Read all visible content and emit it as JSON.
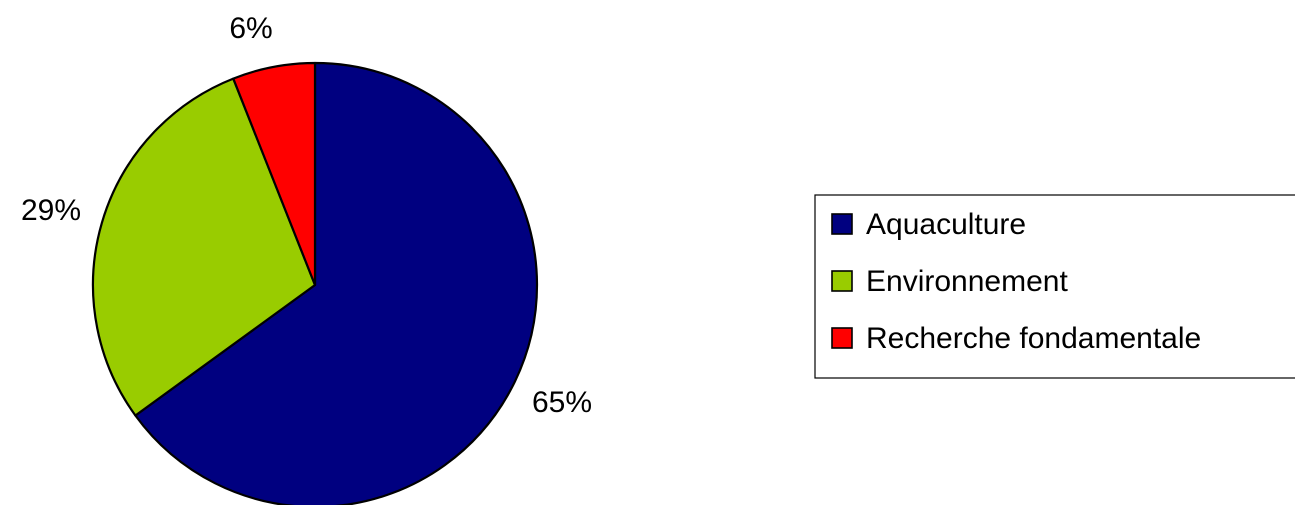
{
  "chart_data": {
    "type": "pie",
    "start": "top",
    "direction": "clockwise",
    "slices": [
      {
        "label": "Aquaculture",
        "value": 65,
        "display": "65%",
        "color": "#000080"
      },
      {
        "label": "Environnement",
        "value": 29,
        "display": "29%",
        "color": "#99CC00"
      },
      {
        "label": "Recherche fondamentale",
        "value": 6,
        "display": "6%",
        "color": "#FF0000"
      }
    ],
    "legend_placement": "right"
  }
}
